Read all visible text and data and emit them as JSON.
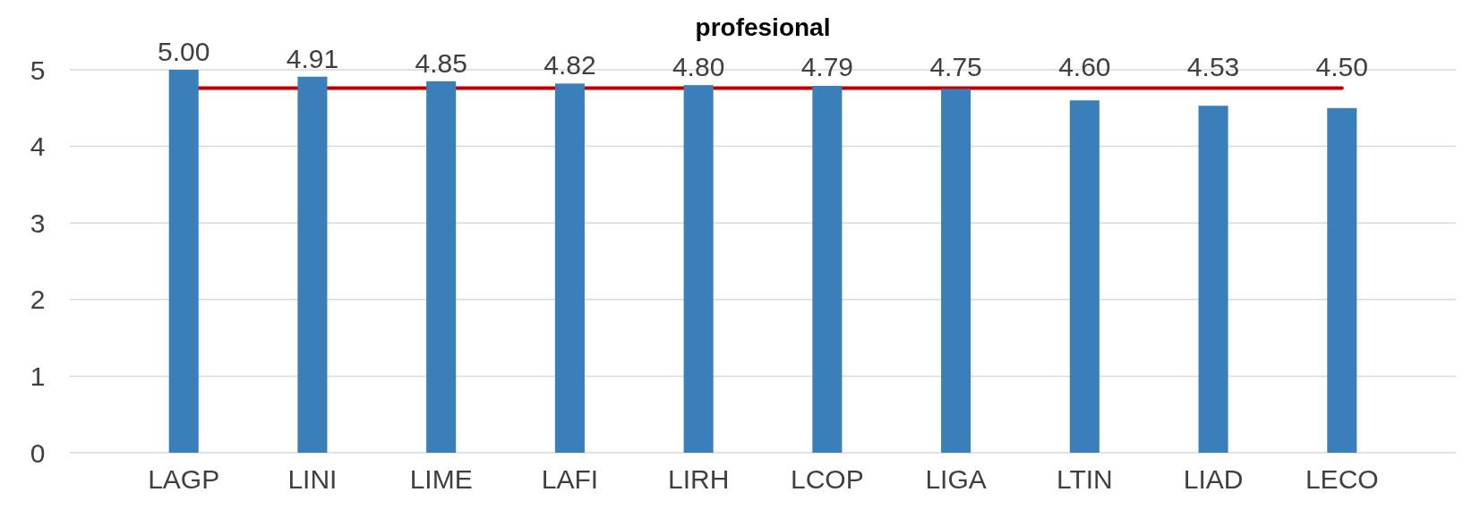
{
  "chart_data": {
    "type": "bar",
    "title": "profesional",
    "categories": [
      "LAGP",
      "LINI",
      "LIME",
      "LAFI",
      "LIRH",
      "LCOP",
      "LIGA",
      "LTIN",
      "LIAD",
      "LECO"
    ],
    "values": [
      5.0,
      4.91,
      4.85,
      4.82,
      4.8,
      4.79,
      4.75,
      4.6,
      4.53,
      4.5
    ],
    "color": "#3a7fba",
    "value_labels": [
      "5.00",
      "4.91",
      "4.85",
      "4.82",
      "4.80",
      "4.79",
      "4.75",
      "4.60",
      "4.53",
      "4.50"
    ],
    "ylim": [
      0,
      5
    ],
    "yticks": [
      0,
      1,
      2,
      3,
      4,
      5
    ],
    "grid": "y",
    "ref_lines": [
      {
        "axis": "y",
        "value": 4.76,
        "color": "#c00000"
      }
    ]
  }
}
